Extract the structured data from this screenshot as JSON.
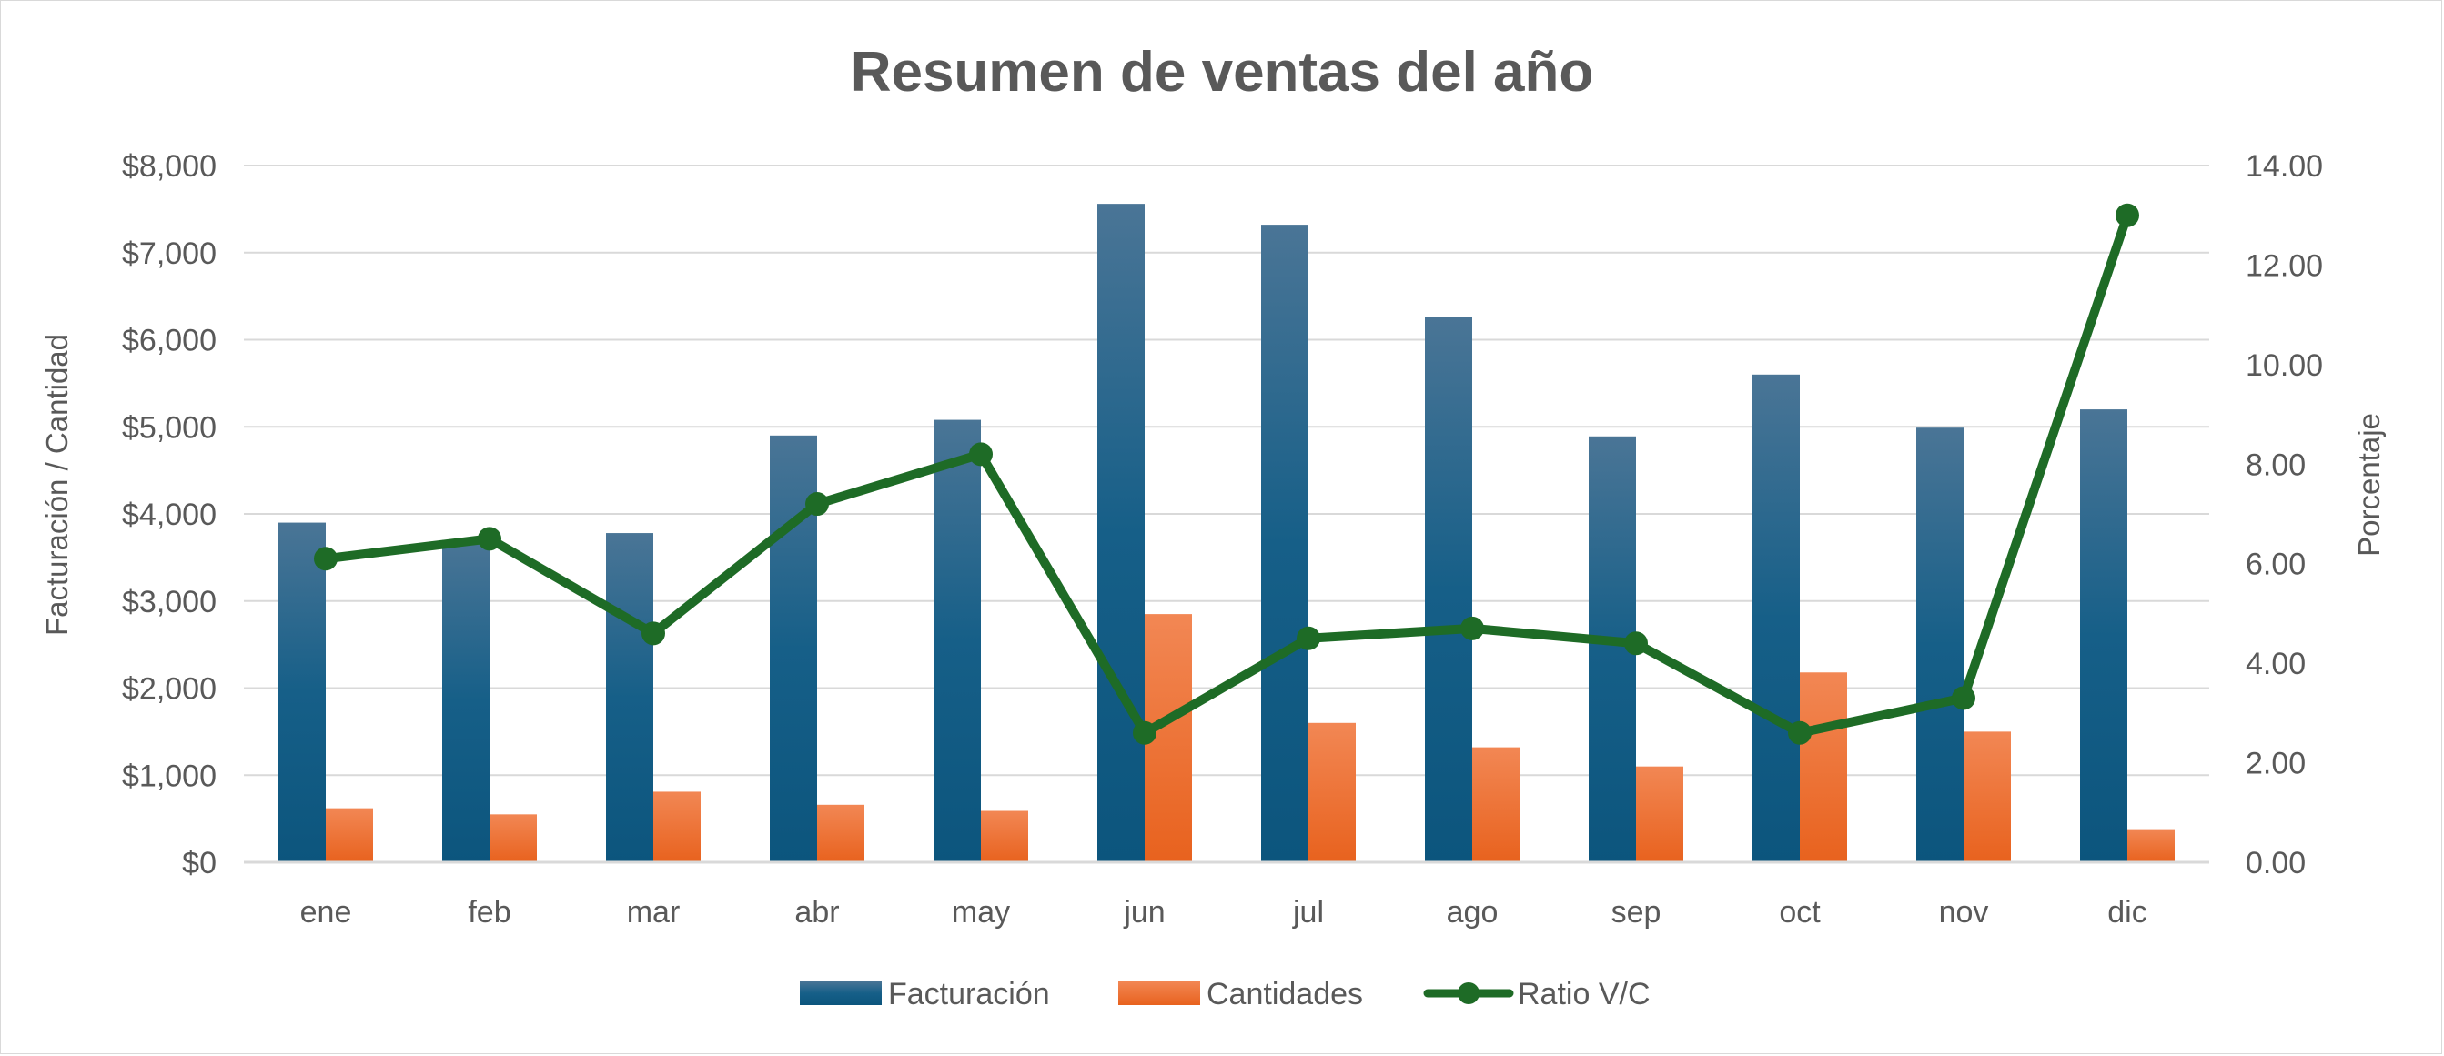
{
  "chart_data": {
    "type": "bar",
    "title": "Resumen de ventas del año",
    "categories": [
      "ene",
      "feb",
      "mar",
      "abr",
      "may",
      "jun",
      "jul",
      "ago",
      "sep",
      "oct",
      "nov",
      "dic"
    ],
    "series": [
      {
        "name": "Facturación",
        "type": "bar",
        "axis": "left",
        "color": "#0e5a84",
        "values": [
          3900,
          3700,
          3780,
          4900,
          5080,
          7560,
          7320,
          6260,
          4890,
          5600,
          4990,
          5200
        ]
      },
      {
        "name": "Cantidades",
        "type": "bar",
        "axis": "left",
        "color": "#ee6a24",
        "values": [
          620,
          550,
          810,
          660,
          590,
          2850,
          1600,
          1320,
          1100,
          2180,
          1500,
          380
        ]
      },
      {
        "name": "Ratio V/C",
        "type": "line",
        "axis": "right",
        "color": "#1e6b26",
        "values": [
          6.1,
          6.5,
          4.6,
          7.2,
          8.2,
          2.6,
          4.5,
          4.7,
          4.4,
          2.6,
          3.3,
          13.0
        ]
      }
    ],
    "ylabel": "Facturación / Cantidad",
    "ylabel_right": "Porcentaje",
    "ylim": [
      0,
      8000
    ],
    "ylim_right": [
      0,
      14
    ],
    "yticks": [
      0,
      1000,
      2000,
      3000,
      4000,
      5000,
      6000,
      7000,
      8000
    ],
    "yticks_labels": [
      "$0",
      "$1,000",
      "$2,000",
      "$3,000",
      "$4,000",
      "$5,000",
      "$6,000",
      "$7,000",
      "$8,000"
    ],
    "yticks_right": [
      0,
      2,
      4,
      6,
      8,
      10,
      12,
      14
    ],
    "yticks_right_labels": [
      "0.00",
      "2.00",
      "4.00",
      "6.00",
      "8.00",
      "10.00",
      "12.00",
      "14.00"
    ],
    "grid": true,
    "legend_position": "bottom"
  }
}
